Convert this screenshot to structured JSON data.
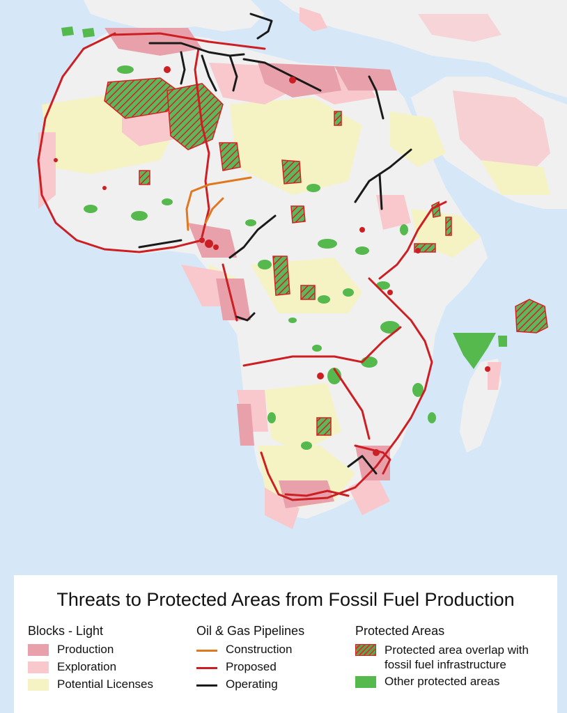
{
  "legend": {
    "title": "Threats to Protected Areas from Fossil Fuel Production",
    "blocks": {
      "heading": "Blocks - Light",
      "items": [
        {
          "label": "Production",
          "color": "#e8a0aa"
        },
        {
          "label": "Exploration",
          "color": "#f8c8cc"
        },
        {
          "label": "Potential Licenses",
          "color": "#f5f2c4"
        }
      ]
    },
    "pipelines": {
      "heading": "Oil & Gas Pipelines",
      "items": [
        {
          "label": "Construction",
          "color": "#e07820"
        },
        {
          "label": "Proposed",
          "color": "#cc1f24"
        },
        {
          "label": "Operating",
          "color": "#1a1a1a"
        }
      ]
    },
    "protected": {
      "heading": "Protected Areas",
      "items": [
        {
          "label": "Protected area overlap with fossil fuel infrastructure",
          "swatch": "hatched-red-green"
        },
        {
          "label": "Other protected areas",
          "color": "#55b94e"
        }
      ]
    }
  },
  "colors": {
    "ocean": "#d6e8f8",
    "land": "#f0f0f0",
    "production": "#e8a0aa",
    "exploration": "#f8c8cc",
    "potential": "#f5f2c4",
    "protected": "#55b94e",
    "proposed": "#cc1f24",
    "operating": "#1a1a1a",
    "construction": "#e07820"
  }
}
